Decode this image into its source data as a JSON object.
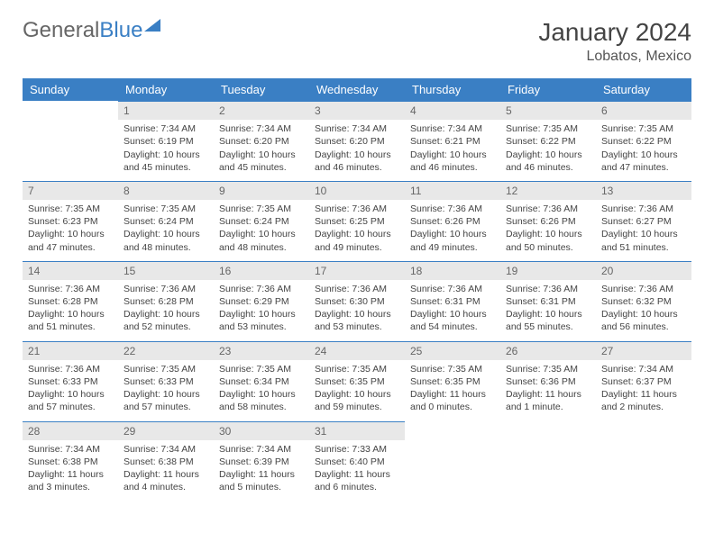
{
  "brand": {
    "part1": "General",
    "part2": "Blue"
  },
  "title": "January 2024",
  "location": "Lobatos, Mexico",
  "weekdays": [
    "Sunday",
    "Monday",
    "Tuesday",
    "Wednesday",
    "Thursday",
    "Friday",
    "Saturday"
  ],
  "colors": {
    "accent": "#3a7fc4",
    "dayrow_bg": "#e8e8e8",
    "text": "#444444"
  },
  "font": {
    "family": "Arial",
    "header_size_pt": 21,
    "body_size_pt": 8
  },
  "weeks": [
    [
      {
        "n": "",
        "sunrise": "",
        "sunset": "",
        "daylight": ""
      },
      {
        "n": "1",
        "sunrise": "Sunrise: 7:34 AM",
        "sunset": "Sunset: 6:19 PM",
        "daylight": "Daylight: 10 hours and 45 minutes."
      },
      {
        "n": "2",
        "sunrise": "Sunrise: 7:34 AM",
        "sunset": "Sunset: 6:20 PM",
        "daylight": "Daylight: 10 hours and 45 minutes."
      },
      {
        "n": "3",
        "sunrise": "Sunrise: 7:34 AM",
        "sunset": "Sunset: 6:20 PM",
        "daylight": "Daylight: 10 hours and 46 minutes."
      },
      {
        "n": "4",
        "sunrise": "Sunrise: 7:34 AM",
        "sunset": "Sunset: 6:21 PM",
        "daylight": "Daylight: 10 hours and 46 minutes."
      },
      {
        "n": "5",
        "sunrise": "Sunrise: 7:35 AM",
        "sunset": "Sunset: 6:22 PM",
        "daylight": "Daylight: 10 hours and 46 minutes."
      },
      {
        "n": "6",
        "sunrise": "Sunrise: 7:35 AM",
        "sunset": "Sunset: 6:22 PM",
        "daylight": "Daylight: 10 hours and 47 minutes."
      }
    ],
    [
      {
        "n": "7",
        "sunrise": "Sunrise: 7:35 AM",
        "sunset": "Sunset: 6:23 PM",
        "daylight": "Daylight: 10 hours and 47 minutes."
      },
      {
        "n": "8",
        "sunrise": "Sunrise: 7:35 AM",
        "sunset": "Sunset: 6:24 PM",
        "daylight": "Daylight: 10 hours and 48 minutes."
      },
      {
        "n": "9",
        "sunrise": "Sunrise: 7:35 AM",
        "sunset": "Sunset: 6:24 PM",
        "daylight": "Daylight: 10 hours and 48 minutes."
      },
      {
        "n": "10",
        "sunrise": "Sunrise: 7:36 AM",
        "sunset": "Sunset: 6:25 PM",
        "daylight": "Daylight: 10 hours and 49 minutes."
      },
      {
        "n": "11",
        "sunrise": "Sunrise: 7:36 AM",
        "sunset": "Sunset: 6:26 PM",
        "daylight": "Daylight: 10 hours and 49 minutes."
      },
      {
        "n": "12",
        "sunrise": "Sunrise: 7:36 AM",
        "sunset": "Sunset: 6:26 PM",
        "daylight": "Daylight: 10 hours and 50 minutes."
      },
      {
        "n": "13",
        "sunrise": "Sunrise: 7:36 AM",
        "sunset": "Sunset: 6:27 PM",
        "daylight": "Daylight: 10 hours and 51 minutes."
      }
    ],
    [
      {
        "n": "14",
        "sunrise": "Sunrise: 7:36 AM",
        "sunset": "Sunset: 6:28 PM",
        "daylight": "Daylight: 10 hours and 51 minutes."
      },
      {
        "n": "15",
        "sunrise": "Sunrise: 7:36 AM",
        "sunset": "Sunset: 6:28 PM",
        "daylight": "Daylight: 10 hours and 52 minutes."
      },
      {
        "n": "16",
        "sunrise": "Sunrise: 7:36 AM",
        "sunset": "Sunset: 6:29 PM",
        "daylight": "Daylight: 10 hours and 53 minutes."
      },
      {
        "n": "17",
        "sunrise": "Sunrise: 7:36 AM",
        "sunset": "Sunset: 6:30 PM",
        "daylight": "Daylight: 10 hours and 53 minutes."
      },
      {
        "n": "18",
        "sunrise": "Sunrise: 7:36 AM",
        "sunset": "Sunset: 6:31 PM",
        "daylight": "Daylight: 10 hours and 54 minutes."
      },
      {
        "n": "19",
        "sunrise": "Sunrise: 7:36 AM",
        "sunset": "Sunset: 6:31 PM",
        "daylight": "Daylight: 10 hours and 55 minutes."
      },
      {
        "n": "20",
        "sunrise": "Sunrise: 7:36 AM",
        "sunset": "Sunset: 6:32 PM",
        "daylight": "Daylight: 10 hours and 56 minutes."
      }
    ],
    [
      {
        "n": "21",
        "sunrise": "Sunrise: 7:36 AM",
        "sunset": "Sunset: 6:33 PM",
        "daylight": "Daylight: 10 hours and 57 minutes."
      },
      {
        "n": "22",
        "sunrise": "Sunrise: 7:35 AM",
        "sunset": "Sunset: 6:33 PM",
        "daylight": "Daylight: 10 hours and 57 minutes."
      },
      {
        "n": "23",
        "sunrise": "Sunrise: 7:35 AM",
        "sunset": "Sunset: 6:34 PM",
        "daylight": "Daylight: 10 hours and 58 minutes."
      },
      {
        "n": "24",
        "sunrise": "Sunrise: 7:35 AM",
        "sunset": "Sunset: 6:35 PM",
        "daylight": "Daylight: 10 hours and 59 minutes."
      },
      {
        "n": "25",
        "sunrise": "Sunrise: 7:35 AM",
        "sunset": "Sunset: 6:35 PM",
        "daylight": "Daylight: 11 hours and 0 minutes."
      },
      {
        "n": "26",
        "sunrise": "Sunrise: 7:35 AM",
        "sunset": "Sunset: 6:36 PM",
        "daylight": "Daylight: 11 hours and 1 minute."
      },
      {
        "n": "27",
        "sunrise": "Sunrise: 7:34 AM",
        "sunset": "Sunset: 6:37 PM",
        "daylight": "Daylight: 11 hours and 2 minutes."
      }
    ],
    [
      {
        "n": "28",
        "sunrise": "Sunrise: 7:34 AM",
        "sunset": "Sunset: 6:38 PM",
        "daylight": "Daylight: 11 hours and 3 minutes."
      },
      {
        "n": "29",
        "sunrise": "Sunrise: 7:34 AM",
        "sunset": "Sunset: 6:38 PM",
        "daylight": "Daylight: 11 hours and 4 minutes."
      },
      {
        "n": "30",
        "sunrise": "Sunrise: 7:34 AM",
        "sunset": "Sunset: 6:39 PM",
        "daylight": "Daylight: 11 hours and 5 minutes."
      },
      {
        "n": "31",
        "sunrise": "Sunrise: 7:33 AM",
        "sunset": "Sunset: 6:40 PM",
        "daylight": "Daylight: 11 hours and 6 minutes."
      },
      {
        "n": "",
        "sunrise": "",
        "sunset": "",
        "daylight": ""
      },
      {
        "n": "",
        "sunrise": "",
        "sunset": "",
        "daylight": ""
      },
      {
        "n": "",
        "sunrise": "",
        "sunset": "",
        "daylight": ""
      }
    ]
  ]
}
